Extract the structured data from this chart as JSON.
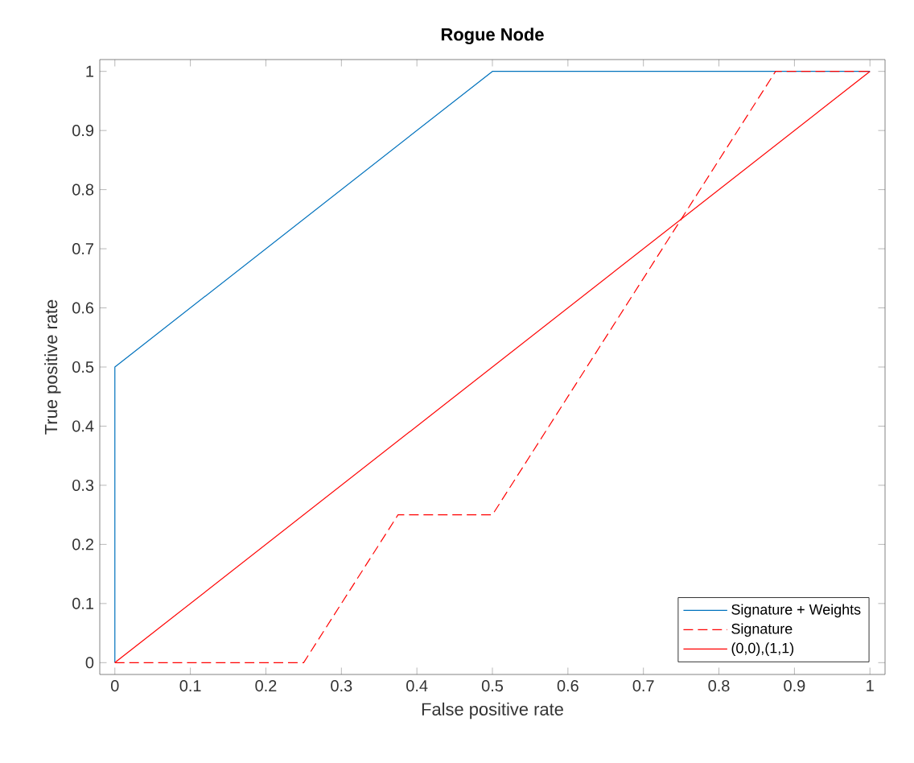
{
  "chart_data": {
    "type": "line",
    "title": "Rogue Node",
    "xlabel": "False positive rate",
    "ylabel": "True positive rate",
    "xlim": [
      -0.02,
      1.02
    ],
    "ylim": [
      -0.02,
      1.02
    ],
    "xticks": [
      0,
      0.1,
      0.2,
      0.3,
      0.4,
      0.5,
      0.6,
      0.7,
      0.8,
      0.9,
      1
    ],
    "yticks": [
      0,
      0.1,
      0.2,
      0.3,
      0.4,
      0.5,
      0.6,
      0.7,
      0.8,
      0.9,
      1
    ],
    "grid": false,
    "legend": "bottom right",
    "series": [
      {
        "name": "Signature  + Weights",
        "color": "#0072bd",
        "line_style": "solid",
        "x": [
          0,
          0,
          0.5,
          1
        ],
        "values": [
          0,
          0.5,
          1,
          1
        ]
      },
      {
        "name": "Signature",
        "color": "#ff0000",
        "line_style": "dashed",
        "x": [
          0,
          0.25,
          0.375,
          0.5,
          0.875,
          1
        ],
        "values": [
          0,
          0,
          0.25,
          0.25,
          1,
          1
        ]
      },
      {
        "name": "(0,0),(1,1)",
        "color": "#ff0000",
        "line_style": "solid",
        "x": [
          0,
          1
        ],
        "values": [
          0,
          1
        ]
      }
    ]
  }
}
